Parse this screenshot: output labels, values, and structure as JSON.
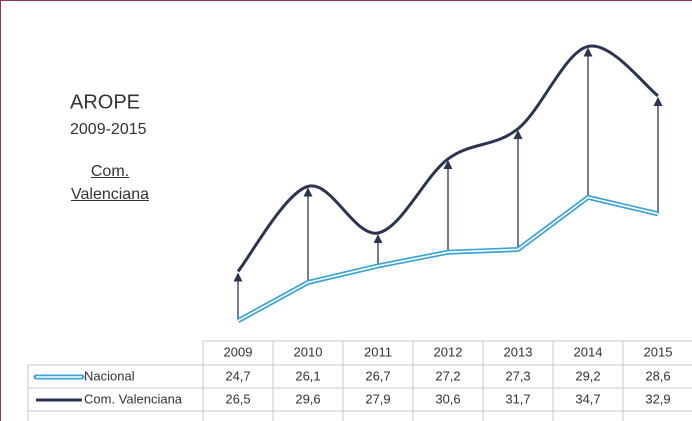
{
  "chart_data": {
    "type": "line",
    "title": "AROPE",
    "subtitle": "2009-2015",
    "region": "Com. Valenciana",
    "categories": [
      "2009",
      "2010",
      "2011",
      "2012",
      "2013",
      "2014",
      "2015"
    ],
    "ylim": [
      24,
      35.3
    ],
    "series": [
      {
        "name": "Nacional",
        "color": "#3ba3d8",
        "values": [
          24.7,
          26.1,
          26.7,
          27.2,
          27.3,
          29.2,
          28.6
        ],
        "value_labels": [
          "24,7",
          "26,1",
          "26,7",
          "27,2",
          "27,3",
          "29,2",
          "28,6"
        ]
      },
      {
        "name": "Com. Valenciana",
        "color": "#2b3552",
        "values": [
          26.5,
          29.6,
          27.9,
          30.6,
          31.7,
          34.7,
          32.9
        ],
        "value_labels": [
          "26,5",
          "29,6",
          "27,9",
          "30,6",
          "31,7",
          "34,7",
          "32,9"
        ]
      }
    ]
  }
}
